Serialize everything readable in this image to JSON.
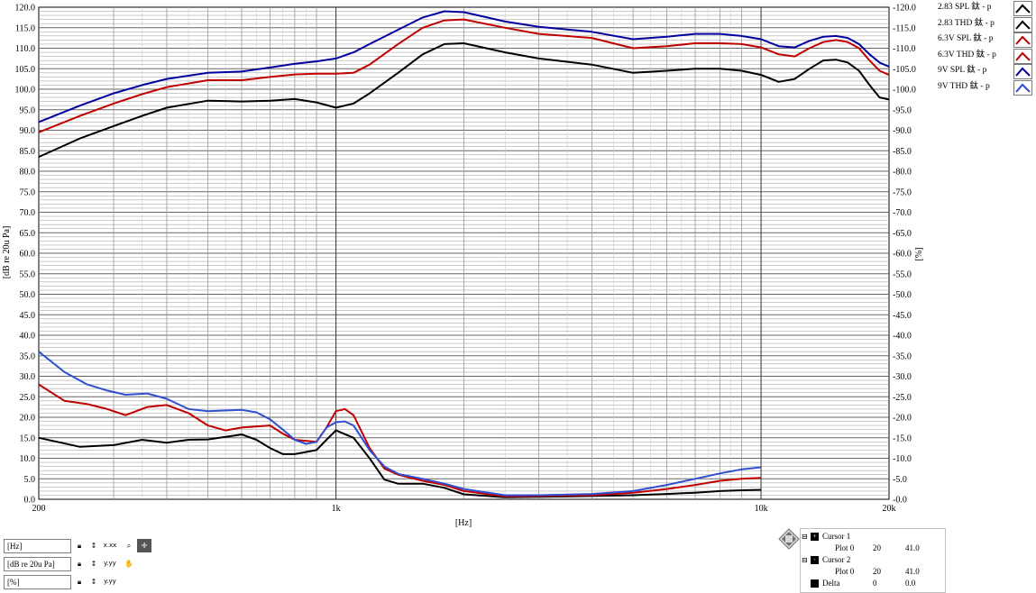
{
  "chart_data": {
    "type": "line",
    "title": "",
    "xlabel": "[Hz]",
    "ylabel": "[dB re 20u Pa]",
    "y2label": "[%]",
    "x_scale": "log",
    "xlim": [
      200,
      20000
    ],
    "ylim": [
      0,
      120
    ],
    "y2lim": [
      0,
      120
    ],
    "grid": true,
    "legend_position": "top-right",
    "x_tick_labels": [
      {
        "value": 200,
        "label": "200"
      },
      {
        "value": 1000,
        "label": "1k"
      },
      {
        "value": 10000,
        "label": "10k"
      },
      {
        "value": 20000,
        "label": "20k"
      }
    ],
    "y_ticks_left": [
      "0.0",
      "5.0",
      "10.0",
      "15.0",
      "20.0",
      "25.0",
      "30.0",
      "35.0",
      "40.0",
      "45.0",
      "50.0",
      "55.0",
      "60.0",
      "65.0",
      "70.0",
      "75.0",
      "80.0",
      "85.0",
      "90.0",
      "95.0",
      "100.0",
      "105.0",
      "110.0",
      "115.0",
      "120.0"
    ],
    "y_ticks_right": [
      "-0.0",
      "-5.0",
      "-10.0",
      "-15.0",
      "-20.0",
      "-25.0",
      "-30.0",
      "-35.0",
      "-40.0",
      "-45.0",
      "-50.0",
      "-55.0",
      "-60.0",
      "-65.0",
      "-70.0",
      "-75.0",
      "-80.0",
      "-85.0",
      "-90.0",
      "-95.0",
      "-100.0",
      "-105.0",
      "-110.0",
      "-115.0",
      "-120.0"
    ],
    "series": [
      {
        "name": "2.83  SPL 鈦 - p",
        "color": "#000000",
        "points": [
          [
            200,
            83.5
          ],
          [
            250,
            88
          ],
          [
            300,
            91
          ],
          [
            350,
            93.5
          ],
          [
            400,
            95.5
          ],
          [
            500,
            97.2
          ],
          [
            600,
            97
          ],
          [
            700,
            97.2
          ],
          [
            800,
            97.6
          ],
          [
            900,
            96.8
          ],
          [
            1000,
            95.5
          ],
          [
            1100,
            96.5
          ],
          [
            1200,
            99
          ],
          [
            1400,
            104
          ],
          [
            1600,
            108.5
          ],
          [
            1800,
            111
          ],
          [
            2000,
            111.2
          ],
          [
            2500,
            109
          ],
          [
            3000,
            107.5
          ],
          [
            4000,
            106
          ],
          [
            5000,
            104
          ],
          [
            6000,
            104.5
          ],
          [
            7000,
            105
          ],
          [
            8000,
            105
          ],
          [
            9000,
            104.5
          ],
          [
            10000,
            103.5
          ],
          [
            11000,
            101.8
          ],
          [
            12000,
            102.5
          ],
          [
            13000,
            105
          ],
          [
            14000,
            107
          ],
          [
            15000,
            107.2
          ],
          [
            16000,
            106.5
          ],
          [
            17000,
            104.5
          ],
          [
            18000,
            101
          ],
          [
            19000,
            98
          ],
          [
            20000,
            97.5
          ]
        ]
      },
      {
        "name": "2.83  THD 鈦 - p",
        "color": "#000000",
        "points": [
          [
            200,
            15
          ],
          [
            250,
            12.8
          ],
          [
            300,
            13.2
          ],
          [
            350,
            14.5
          ],
          [
            400,
            13.8
          ],
          [
            450,
            14.5
          ],
          [
            500,
            14.6
          ],
          [
            550,
            15.2
          ],
          [
            600,
            15.8
          ],
          [
            650,
            14.5
          ],
          [
            700,
            12.5
          ],
          [
            750,
            11
          ],
          [
            800,
            11
          ],
          [
            900,
            12
          ],
          [
            950,
            14.5
          ],
          [
            1000,
            16.8
          ],
          [
            1100,
            15
          ],
          [
            1200,
            10
          ],
          [
            1300,
            4.8
          ],
          [
            1400,
            3.8
          ],
          [
            1600,
            3.8
          ],
          [
            1800,
            2.8
          ],
          [
            2000,
            1.2
          ],
          [
            2500,
            0.5
          ],
          [
            3000,
            0.6
          ],
          [
            4000,
            0.8
          ],
          [
            5000,
            1
          ],
          [
            6000,
            1.3
          ],
          [
            7000,
            1.6
          ],
          [
            8000,
            2
          ],
          [
            9000,
            2.2
          ],
          [
            10000,
            2.3
          ]
        ]
      },
      {
        "name": "6.3V  SPL 鈦 - p",
        "color": "#c00000",
        "points": [
          [
            200,
            89.5
          ],
          [
            250,
            93.5
          ],
          [
            300,
            96.5
          ],
          [
            350,
            98.8
          ],
          [
            400,
            100.5
          ],
          [
            500,
            102.2
          ],
          [
            600,
            102.2
          ],
          [
            700,
            103
          ],
          [
            800,
            103.6
          ],
          [
            900,
            103.8
          ],
          [
            1000,
            103.8
          ],
          [
            1100,
            104
          ],
          [
            1200,
            106
          ],
          [
            1400,
            111
          ],
          [
            1600,
            115
          ],
          [
            1800,
            116.8
          ],
          [
            2000,
            117
          ],
          [
            2500,
            115
          ],
          [
            3000,
            113.5
          ],
          [
            4000,
            112.5
          ],
          [
            5000,
            110
          ],
          [
            6000,
            110.5
          ],
          [
            7000,
            111.2
          ],
          [
            8000,
            111.2
          ],
          [
            9000,
            111
          ],
          [
            10000,
            110.2
          ],
          [
            11000,
            108.5
          ],
          [
            12000,
            108
          ],
          [
            13000,
            110
          ],
          [
            14000,
            111.5
          ],
          [
            15000,
            112
          ],
          [
            16000,
            111.5
          ],
          [
            17000,
            110
          ],
          [
            18000,
            107
          ],
          [
            19000,
            104.5
          ],
          [
            20000,
            103.5
          ]
        ]
      },
      {
        "name": "6.3V  THD 鈦 - p",
        "color": "#c00000",
        "points": [
          [
            200,
            28
          ],
          [
            230,
            24
          ],
          [
            260,
            23.2
          ],
          [
            290,
            22
          ],
          [
            320,
            20.5
          ],
          [
            360,
            22.5
          ],
          [
            400,
            23
          ],
          [
            450,
            21
          ],
          [
            500,
            18
          ],
          [
            550,
            16.8
          ],
          [
            600,
            17.5
          ],
          [
            700,
            18
          ],
          [
            750,
            16
          ],
          [
            800,
            14.5
          ],
          [
            900,
            14
          ],
          [
            950,
            17.5
          ],
          [
            1000,
            21.5
          ],
          [
            1050,
            22
          ],
          [
            1100,
            20.5
          ],
          [
            1200,
            12.5
          ],
          [
            1300,
            7.5
          ],
          [
            1400,
            6
          ],
          [
            1600,
            4.5
          ],
          [
            1800,
            3.5
          ],
          [
            2000,
            2
          ],
          [
            2500,
            0.7
          ],
          [
            3000,
            0.8
          ],
          [
            4000,
            1
          ],
          [
            5000,
            1.6
          ],
          [
            6000,
            2.5
          ],
          [
            7000,
            3.5
          ],
          [
            8000,
            4.5
          ],
          [
            9000,
            5
          ],
          [
            10000,
            5.2
          ]
        ]
      },
      {
        "name": "9V  SPL 鈦 - p",
        "color": "#0000a0",
        "points": [
          [
            200,
            92
          ],
          [
            250,
            96
          ],
          [
            300,
            99
          ],
          [
            350,
            101
          ],
          [
            400,
            102.5
          ],
          [
            500,
            104
          ],
          [
            600,
            104.3
          ],
          [
            700,
            105.3
          ],
          [
            800,
            106.2
          ],
          [
            900,
            106.8
          ],
          [
            1000,
            107.5
          ],
          [
            1100,
            109
          ],
          [
            1200,
            111
          ],
          [
            1400,
            114.5
          ],
          [
            1600,
            117.5
          ],
          [
            1800,
            119
          ],
          [
            2000,
            118.8
          ],
          [
            2500,
            116.5
          ],
          [
            3000,
            115.2
          ],
          [
            4000,
            114
          ],
          [
            5000,
            112.2
          ],
          [
            6000,
            112.8
          ],
          [
            7000,
            113.5
          ],
          [
            8000,
            113.5
          ],
          [
            9000,
            113
          ],
          [
            10000,
            112.2
          ],
          [
            11000,
            110.5
          ],
          [
            12000,
            110.2
          ],
          [
            13000,
            111.8
          ],
          [
            14000,
            112.8
          ],
          [
            15000,
            113
          ],
          [
            16000,
            112.5
          ],
          [
            17000,
            111
          ],
          [
            18000,
            108.5
          ],
          [
            19000,
            106.5
          ],
          [
            20000,
            105.5
          ]
        ]
      },
      {
        "name": "9V   THD 鈦 - p",
        "color": "#2f4fd0",
        "points": [
          [
            200,
            36
          ],
          [
            230,
            31
          ],
          [
            260,
            28
          ],
          [
            290,
            26.5
          ],
          [
            320,
            25.5
          ],
          [
            360,
            25.8
          ],
          [
            400,
            24.5
          ],
          [
            450,
            22
          ],
          [
            500,
            21.5
          ],
          [
            600,
            21.8
          ],
          [
            650,
            21.2
          ],
          [
            700,
            19.5
          ],
          [
            750,
            17
          ],
          [
            800,
            14.5
          ],
          [
            850,
            13.5
          ],
          [
            900,
            14
          ],
          [
            950,
            17.5
          ],
          [
            1000,
            18.8
          ],
          [
            1050,
            19
          ],
          [
            1100,
            18
          ],
          [
            1200,
            12
          ],
          [
            1300,
            8
          ],
          [
            1400,
            6.2
          ],
          [
            1600,
            5
          ],
          [
            1800,
            3.8
          ],
          [
            2000,
            2.5
          ],
          [
            2500,
            1
          ],
          [
            3000,
            1
          ],
          [
            4000,
            1.3
          ],
          [
            5000,
            2
          ],
          [
            6000,
            3.5
          ],
          [
            7000,
            5
          ],
          [
            8000,
            6.3
          ],
          [
            9000,
            7.3
          ],
          [
            10000,
            7.8
          ]
        ]
      }
    ]
  },
  "legend": [
    {
      "label": "2.83  SPL 鈦 - p",
      "color": "#000000"
    },
    {
      "label": "2.83  THD 鈦 - p",
      "color": "#000000"
    },
    {
      "label": "6.3V  SPL 鈦 - p",
      "color": "#c00000"
    },
    {
      "label": "6.3V  THD 鈦 - p",
      "color": "#c00000"
    },
    {
      "label": "9V  SPL 鈦 - p",
      "color": "#0000a0"
    },
    {
      "label": "9V   THD 鈦 - p",
      "color": "#2f4fd0"
    }
  ],
  "controls": {
    "x_field": "[Hz]",
    "y_field": "[dB re 20u Pa]",
    "y2_field": "[%]",
    "btn_xfmt": "x.xx",
    "btn_yfmt": "y.yy"
  },
  "cursors": {
    "cursor1_label": "Cursor 1",
    "cursor1_plot": "Plot 0",
    "cursor1_x": "20",
    "cursor1_y": "41.0",
    "cursor2_label": "Cursor 2",
    "cursor2_plot": "Plot 0",
    "cursor2_x": "20",
    "cursor2_y": "41.0",
    "delta_label": "Delta",
    "delta_x": "0",
    "delta_y": "0.0"
  }
}
